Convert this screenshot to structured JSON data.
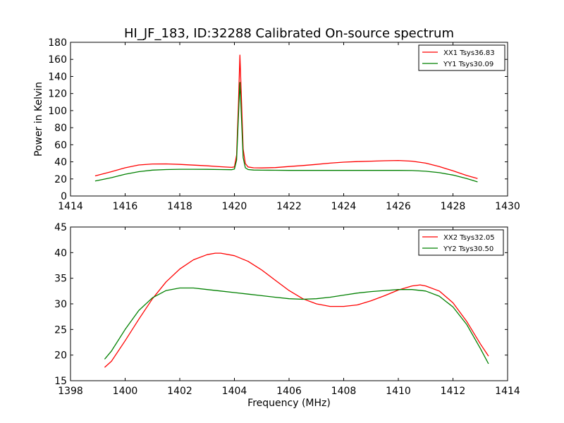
{
  "chart_data": [
    {
      "type": "line",
      "title": "HI_JF_183, ID:32288 Calibrated On-source spectrum",
      "xlabel": "",
      "ylabel": "Power in Kelvin",
      "xlim": [
        1414,
        1430
      ],
      "ylim": [
        0,
        180
      ],
      "xticks": [
        1414,
        1416,
        1418,
        1420,
        1422,
        1424,
        1426,
        1428,
        1430
      ],
      "yticks": [
        0,
        20,
        40,
        60,
        80,
        100,
        120,
        140,
        160,
        180
      ],
      "grid": false,
      "legend": "top-right",
      "series": [
        {
          "name": "XX1 Tsys36.83",
          "color": "#ff0000",
          "points": [
            [
              1414.9,
              23.5
            ],
            [
              1415.5,
              28.5
            ],
            [
              1416,
              33
            ],
            [
              1416.5,
              36.3
            ],
            [
              1417,
              37.5
            ],
            [
              1417.5,
              37.6
            ],
            [
              1418,
              37
            ],
            [
              1418.5,
              36.2
            ],
            [
              1419,
              35.3
            ],
            [
              1419.5,
              34.3
            ],
            [
              1419.9,
              33.5
            ],
            [
              1420.0,
              34
            ],
            [
              1420.08,
              48
            ],
            [
              1420.15,
              110
            ],
            [
              1420.2,
              165
            ],
            [
              1420.25,
              120
            ],
            [
              1420.32,
              55
            ],
            [
              1420.4,
              38
            ],
            [
              1420.5,
              34
            ],
            [
              1420.7,
              33
            ],
            [
              1421,
              32.9
            ],
            [
              1421.5,
              33.3
            ],
            [
              1422,
              34.5
            ],
            [
              1422.5,
              35.7
            ],
            [
              1423,
              37
            ],
            [
              1423.5,
              38.5
            ],
            [
              1424,
              39.6
            ],
            [
              1424.5,
              40.3
            ],
            [
              1425,
              40.8
            ],
            [
              1425.5,
              41.3
            ],
            [
              1426,
              41.6
            ],
            [
              1426.5,
              40.8
            ],
            [
              1427,
              38.5
            ],
            [
              1427.5,
              34.5
            ],
            [
              1428,
              29.5
            ],
            [
              1428.5,
              24
            ],
            [
              1428.9,
              20.5
            ]
          ]
        },
        {
          "name": "YY1 Tsys30.09",
          "color": "#008000",
          "points": [
            [
              1414.9,
              17.5
            ],
            [
              1415.5,
              21.5
            ],
            [
              1416,
              25.5
            ],
            [
              1416.5,
              28.5
            ],
            [
              1417,
              30.3
            ],
            [
              1417.5,
              31
            ],
            [
              1418,
              31.3
            ],
            [
              1418.5,
              31.3
            ],
            [
              1419,
              31.2
            ],
            [
              1419.5,
              31
            ],
            [
              1419.9,
              30.8
            ],
            [
              1420.0,
              31.5
            ],
            [
              1420.08,
              42
            ],
            [
              1420.15,
              95
            ],
            [
              1420.2,
              133
            ],
            [
              1420.25,
              98
            ],
            [
              1420.32,
              45
            ],
            [
              1420.4,
              33
            ],
            [
              1420.5,
              31
            ],
            [
              1420.7,
              30.4
            ],
            [
              1421,
              30.2
            ],
            [
              1421.5,
              30.1
            ],
            [
              1422,
              30
            ],
            [
              1422.5,
              30
            ],
            [
              1423,
              30
            ],
            [
              1423.5,
              30
            ],
            [
              1424,
              30
            ],
            [
              1424.5,
              30
            ],
            [
              1425,
              30
            ],
            [
              1425.5,
              30
            ],
            [
              1426,
              30
            ],
            [
              1426.5,
              29.8
            ],
            [
              1427,
              29
            ],
            [
              1427.5,
              27.3
            ],
            [
              1428,
              24.5
            ],
            [
              1428.5,
              20.5
            ],
            [
              1428.9,
              16.5
            ]
          ]
        }
      ]
    },
    {
      "type": "line",
      "title": "",
      "xlabel": "Frequency (MHz)",
      "ylabel": "",
      "xlim": [
        1398,
        1414
      ],
      "ylim": [
        15,
        45
      ],
      "xticks": [
        1398,
        1400,
        1402,
        1404,
        1406,
        1408,
        1410,
        1412,
        1414
      ],
      "yticks": [
        15,
        20,
        25,
        30,
        35,
        40,
        45
      ],
      "grid": false,
      "legend": "top-right",
      "series": [
        {
          "name": "XX2 Tsys32.05",
          "color": "#ff0000",
          "points": [
            [
              1399.25,
              17.6
            ],
            [
              1399.5,
              18.8
            ],
            [
              1400,
              22.8
            ],
            [
              1400.5,
              27
            ],
            [
              1401,
              31
            ],
            [
              1401.5,
              34.3
            ],
            [
              1402,
              36.8
            ],
            [
              1402.5,
              38.6
            ],
            [
              1403,
              39.6
            ],
            [
              1403.3,
              39.9
            ],
            [
              1403.5,
              39.9
            ],
            [
              1404,
              39.4
            ],
            [
              1404.5,
              38.3
            ],
            [
              1405,
              36.6
            ],
            [
              1405.5,
              34.6
            ],
            [
              1406,
              32.6
            ],
            [
              1406.5,
              31
            ],
            [
              1407,
              30
            ],
            [
              1407.5,
              29.5
            ],
            [
              1408,
              29.5
            ],
            [
              1408.5,
              29.8
            ],
            [
              1409,
              30.6
            ],
            [
              1409.5,
              31.6
            ],
            [
              1410,
              32.7
            ],
            [
              1410.5,
              33.5
            ],
            [
              1410.8,
              33.7
            ],
            [
              1411,
              33.5
            ],
            [
              1411.5,
              32.5
            ],
            [
              1412,
              30.2
            ],
            [
              1412.5,
              26.6
            ],
            [
              1413,
              22.2
            ],
            [
              1413.3,
              19.8
            ]
          ]
        },
        {
          "name": "YY2 Tsys30.50",
          "color": "#008000",
          "points": [
            [
              1399.25,
              19.2
            ],
            [
              1399.5,
              20.8
            ],
            [
              1400,
              25
            ],
            [
              1400.5,
              28.7
            ],
            [
              1401,
              31.2
            ],
            [
              1401.5,
              32.6
            ],
            [
              1402,
              33.1
            ],
            [
              1402.5,
              33.1
            ],
            [
              1403,
              32.8
            ],
            [
              1403.5,
              32.5
            ],
            [
              1404,
              32.2
            ],
            [
              1404.5,
              31.9
            ],
            [
              1405,
              31.6
            ],
            [
              1405.5,
              31.3
            ],
            [
              1406,
              31
            ],
            [
              1406.5,
              30.9
            ],
            [
              1407,
              31
            ],
            [
              1407.5,
              31.3
            ],
            [
              1408,
              31.7
            ],
            [
              1408.5,
              32.1
            ],
            [
              1409,
              32.4
            ],
            [
              1409.5,
              32.6
            ],
            [
              1410,
              32.8
            ],
            [
              1410.5,
              32.8
            ],
            [
              1411,
              32.5
            ],
            [
              1411.5,
              31.5
            ],
            [
              1412,
              29.4
            ],
            [
              1412.5,
              26
            ],
            [
              1413,
              21.3
            ],
            [
              1413.3,
              18.3
            ]
          ]
        }
      ]
    }
  ]
}
